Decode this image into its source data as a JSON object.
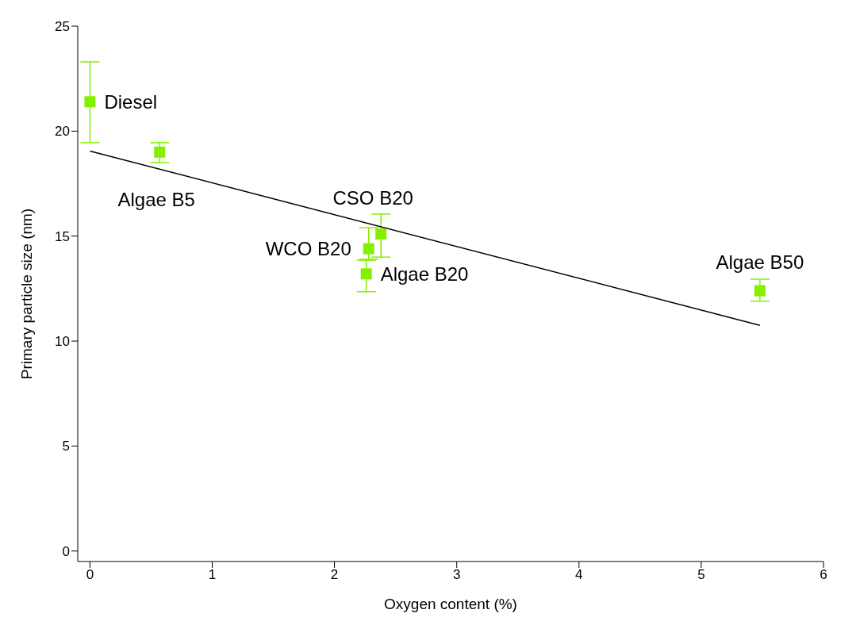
{
  "chart_data": {
    "type": "scatter",
    "xlabel": "Oxygen content (%)",
    "ylabel": "Primary particle size (nm)",
    "xlim": [
      -0.1,
      6
    ],
    "ylim": [
      -0.5,
      25
    ],
    "xticks": [
      0,
      1,
      2,
      3,
      4,
      5,
      6
    ],
    "yticks": [
      0,
      5,
      10,
      15,
      20,
      25
    ],
    "grid": false,
    "legend": false,
    "marker": "square",
    "series": [
      {
        "color": "#84f000",
        "x": [
          0,
          0.57,
          2.38,
          2.28,
          2.26,
          5.48
        ],
        "values": [
          21.4,
          19.0,
          15.1,
          14.4,
          13.2,
          12.4
        ],
        "errors": [
          [
            19.45,
            23.3
          ],
          [
            18.5,
            19.45
          ],
          [
            14.0,
            16.05
          ],
          [
            13.9,
            15.4
          ],
          [
            12.35,
            13.85
          ],
          [
            11.9,
            12.95
          ]
        ]
      },
      {
        "type": "line",
        "color": "#000000",
        "marker": "none",
        "line_style": "solid",
        "x": [
          0,
          5.48
        ],
        "values": [
          19.05,
          10.75
        ]
      }
    ],
    "annotations": [
      {
        "text": "Diesel",
        "x": 0,
        "y": 21.4
      },
      {
        "text": "Algae B5",
        "x": 0.57,
        "y": 19.0
      },
      {
        "text": "CSO B20",
        "x": 2.38,
        "y": 15.1
      },
      {
        "text": "WCO B20",
        "x": 2.28,
        "y": 14.4
      },
      {
        "text": "Algae B20",
        "x": 2.26,
        "y": 13.2
      },
      {
        "text": "Algae B50",
        "x": 5.48,
        "y": 12.4
      }
    ]
  }
}
